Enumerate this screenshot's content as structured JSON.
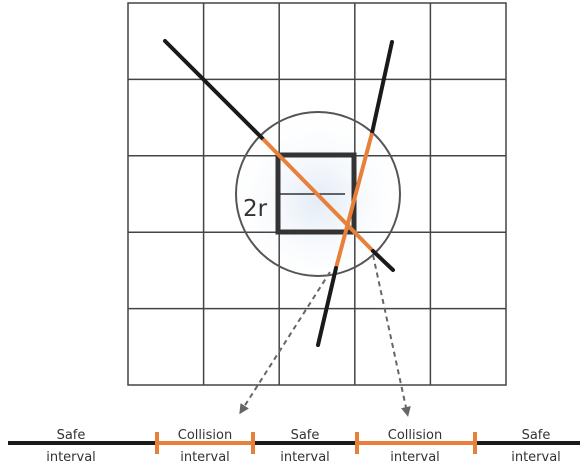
{
  "grid": {
    "rows": 5,
    "cols": 5
  },
  "radius_label": "2r",
  "timeline": {
    "intervals": [
      {
        "kind": "safe",
        "line1": "Safe",
        "line2": "interval"
      },
      {
        "kind": "collision",
        "line1": "Collision",
        "line2": "interval"
      },
      {
        "kind": "safe",
        "line1": "Safe",
        "line2": "interval"
      },
      {
        "kind": "collision",
        "line1": "Collision",
        "line2": "interval"
      },
      {
        "kind": "safe",
        "line1": "Safe",
        "line2": "interval"
      }
    ]
  },
  "colors": {
    "grid_line": "#444444",
    "path": "#1a1a1a",
    "collision": "#e8803a",
    "circle": "#555555",
    "obstacle": "#333333",
    "arrow": "#666666",
    "text": "#333333"
  }
}
